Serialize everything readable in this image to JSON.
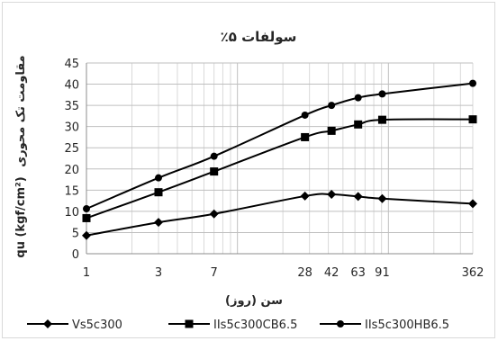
{
  "chart_data": {
    "type": "line",
    "title": "سولفات ۵٪",
    "xlabel": "سن (روز)",
    "ylabel_latin": "qu (kgf/cm²)",
    "ylabel_persian": "مقاومت تک محوری",
    "x_scale": "log",
    "xlim": [
      1,
      362
    ],
    "ylim": [
      0,
      45
    ],
    "y_ticks": [
      0,
      5,
      10,
      15,
      20,
      25,
      30,
      35,
      40,
      45
    ],
    "x_tick_values": [
      1,
      3,
      7,
      28,
      42,
      63,
      91,
      362
    ],
    "x_tick_labels": [
      "1",
      "3",
      "7",
      "28",
      "42",
      "63",
      "91",
      "362"
    ],
    "grid": true,
    "legend_position": "bottom",
    "series": [
      {
        "name": "Vs5c300",
        "marker": "diamond",
        "color": "#000000",
        "x": [
          1,
          3,
          7,
          28,
          42,
          63,
          91,
          362
        ],
        "y": [
          4.3,
          7.4,
          9.4,
          13.6,
          14.0,
          13.5,
          13.0,
          11.8
        ]
      },
      {
        "name": "IIs5c300CB6.5",
        "marker": "square",
        "color": "#000000",
        "x": [
          1,
          3,
          7,
          28,
          42,
          63,
          91,
          362
        ],
        "y": [
          8.4,
          14.5,
          19.4,
          27.5,
          29.0,
          30.5,
          31.6,
          31.7
        ]
      },
      {
        "name": "IIs5c300HB6.5",
        "marker": "circle",
        "color": "#000000",
        "x": [
          1,
          3,
          7,
          28,
          42,
          63,
          91,
          362
        ],
        "y": [
          10.6,
          17.9,
          23.0,
          32.7,
          35.0,
          36.8,
          37.7,
          40.2
        ]
      }
    ]
  }
}
